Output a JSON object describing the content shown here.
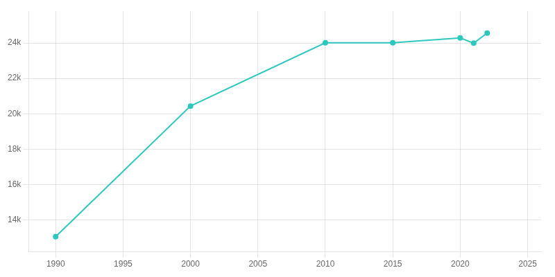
{
  "chart_data": {
    "type": "line",
    "x": [
      1990,
      2000,
      2010,
      2015,
      2020,
      2021,
      2022
    ],
    "values": [
      13054,
      20434,
      24006,
      24010,
      24281,
      23986,
      24557
    ],
    "color": "#2dc7be",
    "marker": "circle",
    "xlim": [
      1988,
      2026
    ],
    "xticks": [
      1990,
      1995,
      2000,
      2005,
      2010,
      2015,
      2020,
      2025
    ],
    "ylim": [
      12200,
      25800
    ],
    "yticks": [
      {
        "value": 14000,
        "label": "14k"
      },
      {
        "value": 16000,
        "label": "16k"
      },
      {
        "value": 18000,
        "label": "18k"
      },
      {
        "value": 20000,
        "label": "20k"
      },
      {
        "value": 22000,
        "label": "22k"
      },
      {
        "value": 24000,
        "label": "24k"
      }
    ],
    "grid": true
  }
}
